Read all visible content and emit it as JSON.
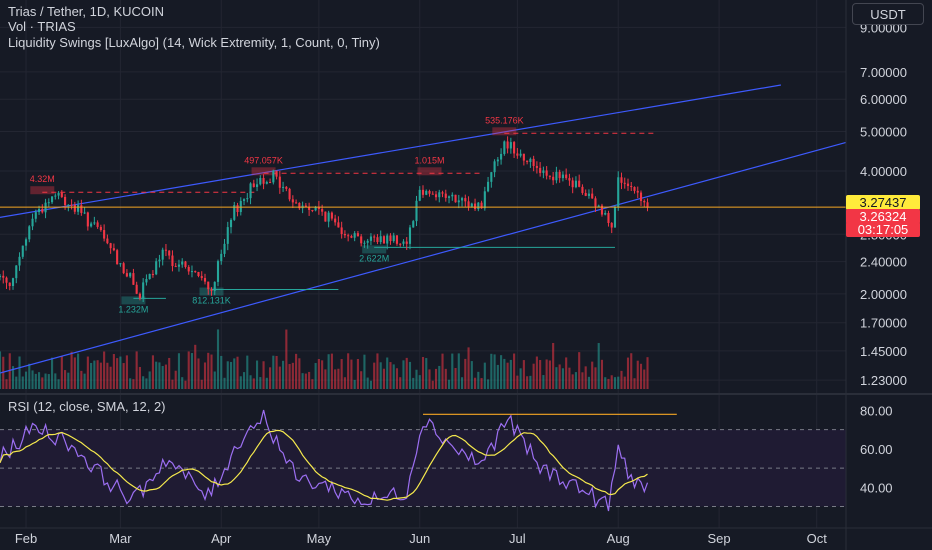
{
  "header": {
    "symbol_title": "Trias / Tether, 1D, KUCOIN",
    "volume_label": "Vol · TRIAS",
    "indicator_label": "Liquidity Swings [LuxAlgo] (14, Wick Extremity, 1, Count, 0, Tiny)",
    "currency_button": "USDT"
  },
  "price_tags": {
    "last_price": "3.27437",
    "current_price": "3.26324",
    "countdown": "03:17:05",
    "colors": {
      "last_price_bg": "#ffeb3b",
      "current_price_bg": "#f23645"
    }
  },
  "rsi": {
    "label": "RSI (12, close, SMA, 12, 2)",
    "ticks": [
      "80.00",
      "60.00",
      "40.00"
    ],
    "upper_band": 70,
    "lower_band": 30,
    "middle_band": 50,
    "line_color": "#9c6ff2",
    "ma_color": "#f5e94d"
  },
  "chart_data": {
    "type": "line",
    "title": "Trias / Tether, 1D, KUCOIN",
    "y_scale": "log",
    "ylim": [
      1.15,
      10.5
    ],
    "price_ticks": [
      "9.00000",
      "7.00000",
      "6.00000",
      "5.00000",
      "4.00000",
      "2.80000",
      "2.40000",
      "2.00000",
      "1.70000",
      "1.45000",
      "1.23000"
    ],
    "price_tick_values": [
      9.0,
      7.0,
      6.0,
      5.0,
      4.0,
      2.8,
      2.4,
      2.0,
      1.7,
      1.45,
      1.23
    ],
    "x_ticks": [
      "Feb",
      "Mar",
      "Apr",
      "May",
      "Jun",
      "Jul",
      "Aug",
      "Sep",
      "Oct"
    ],
    "x_tick_dates": [
      "2024-02-01",
      "2024-03-01",
      "2024-04-01",
      "2024-05-01",
      "2024-06-01",
      "2024-07-01",
      "2024-08-01",
      "2024-09-01",
      "2024-10-01"
    ],
    "date_range": [
      "2024-01-24",
      "2024-10-10"
    ],
    "candle_date_range": [
      "2024-01-24",
      "2024-08-10"
    ],
    "price_path": [
      {
        "date": "2024-01-24",
        "close": 2.2
      },
      {
        "date": "2024-01-28",
        "close": 2.15
      },
      {
        "date": "2024-02-03",
        "close": 3.1
      },
      {
        "date": "2024-02-10",
        "close": 3.5
      },
      {
        "date": "2024-02-17",
        "close": 3.2
      },
      {
        "date": "2024-02-24",
        "close": 2.8
      },
      {
        "date": "2024-03-02",
        "close": 2.3
      },
      {
        "date": "2024-03-07",
        "close": 2.0
      },
      {
        "date": "2024-03-14",
        "close": 2.5
      },
      {
        "date": "2024-03-22",
        "close": 2.3
      },
      {
        "date": "2024-03-29",
        "close": 2.05
      },
      {
        "date": "2024-04-05",
        "close": 3.2
      },
      {
        "date": "2024-04-12",
        "close": 3.8
      },
      {
        "date": "2024-04-17",
        "close": 3.9
      },
      {
        "date": "2024-04-24",
        "close": 3.3
      },
      {
        "date": "2024-05-01",
        "close": 3.2
      },
      {
        "date": "2024-05-08",
        "close": 2.9
      },
      {
        "date": "2024-05-15",
        "close": 2.7
      },
      {
        "date": "2024-05-22",
        "close": 2.75
      },
      {
        "date": "2024-05-28",
        "close": 2.7
      },
      {
        "date": "2024-06-01",
        "close": 3.6
      },
      {
        "date": "2024-06-08",
        "close": 3.5
      },
      {
        "date": "2024-06-15",
        "close": 3.3
      },
      {
        "date": "2024-06-20",
        "close": 3.3
      },
      {
        "date": "2024-06-24",
        "close": 4.3
      },
      {
        "date": "2024-06-28",
        "close": 4.7
      },
      {
        "date": "2024-07-05",
        "close": 4.2
      },
      {
        "date": "2024-07-12",
        "close": 3.9
      },
      {
        "date": "2024-07-19",
        "close": 3.7
      },
      {
        "date": "2024-07-25",
        "close": 3.3
      },
      {
        "date": "2024-07-30",
        "close": 3.0
      },
      {
        "date": "2024-08-01",
        "close": 3.8
      },
      {
        "date": "2024-08-05",
        "close": 3.55
      },
      {
        "date": "2024-08-10",
        "close": 3.26
      }
    ],
    "channel_lines": [
      {
        "from": {
          "date": "2024-01-24",
          "price": 3.08
        },
        "to": {
          "date": "2024-09-20",
          "price": 6.5
        }
      },
      {
        "from": {
          "date": "2024-01-24",
          "price": 1.28
        },
        "to": {
          "date": "2024-10-10",
          "price": 4.7
        }
      }
    ],
    "liquidity_swings": [
      {
        "label": "4.32M",
        "type": "high",
        "date": "2024-02-06",
        "price": 3.55,
        "level_end": "2024-04-12",
        "color": "#f23645"
      },
      {
        "label": "497.057K",
        "type": "high",
        "date": "2024-04-14",
        "price": 3.95,
        "level_end": "2024-06-02",
        "color": "#f23645"
      },
      {
        "label": "1.015M",
        "type": "high",
        "date": "2024-06-04",
        "price": 3.95,
        "level_end": "2024-06-20",
        "color": "#f23645"
      },
      {
        "label": "535.176K",
        "type": "high",
        "date": "2024-06-27",
        "price": 4.95,
        "level_end": "2024-08-13",
        "color": "#f23645"
      },
      {
        "label": "1.232M",
        "type": "low",
        "date": "2024-03-05",
        "price": 1.95,
        "level_end": "2024-03-15",
        "color": "#26a69a"
      },
      {
        "label": "812.131K",
        "type": "low",
        "date": "2024-03-29",
        "price": 2.05,
        "level_end": "2024-05-07",
        "color": "#26a69a"
      },
      {
        "label": "2.622M",
        "type": "low",
        "date": "2024-05-18",
        "price": 2.6,
        "level_end": "2024-07-31",
        "color": "#26a69a"
      }
    ],
    "rsi_path": [
      {
        "date": "2024-01-24",
        "value": 55
      },
      {
        "date": "2024-02-04",
        "value": 72
      },
      {
        "date": "2024-02-15",
        "value": 62
      },
      {
        "date": "2024-02-25",
        "value": 45
      },
      {
        "date": "2024-03-05",
        "value": 33
      },
      {
        "date": "2024-03-15",
        "value": 55
      },
      {
        "date": "2024-03-28",
        "value": 35
      },
      {
        "date": "2024-04-08",
        "value": 68
      },
      {
        "date": "2024-04-14",
        "value": 77
      },
      {
        "date": "2024-04-24",
        "value": 45
      },
      {
        "date": "2024-05-05",
        "value": 40
      },
      {
        "date": "2024-05-15",
        "value": 32
      },
      {
        "date": "2024-05-28",
        "value": 38
      },
      {
        "date": "2024-06-02",
        "value": 76
      },
      {
        "date": "2024-06-12",
        "value": 60
      },
      {
        "date": "2024-06-20",
        "value": 52
      },
      {
        "date": "2024-06-28",
        "value": 76
      },
      {
        "date": "2024-07-08",
        "value": 50
      },
      {
        "date": "2024-07-18",
        "value": 42
      },
      {
        "date": "2024-07-29",
        "value": 30
      },
      {
        "date": "2024-08-01",
        "value": 60
      },
      {
        "date": "2024-08-05",
        "value": 45
      },
      {
        "date": "2024-08-10",
        "value": 39
      }
    ],
    "rsi_overbought_line": {
      "from": "2024-06-02",
      "to": "2024-08-19",
      "value": 78
    },
    "colors": {
      "up": "#26a69a",
      "down": "#f23645",
      "channel": "#3d5afe",
      "last_price_line": "#f5a623",
      "background": "#161a25",
      "text": "#d1d4dc"
    }
  }
}
